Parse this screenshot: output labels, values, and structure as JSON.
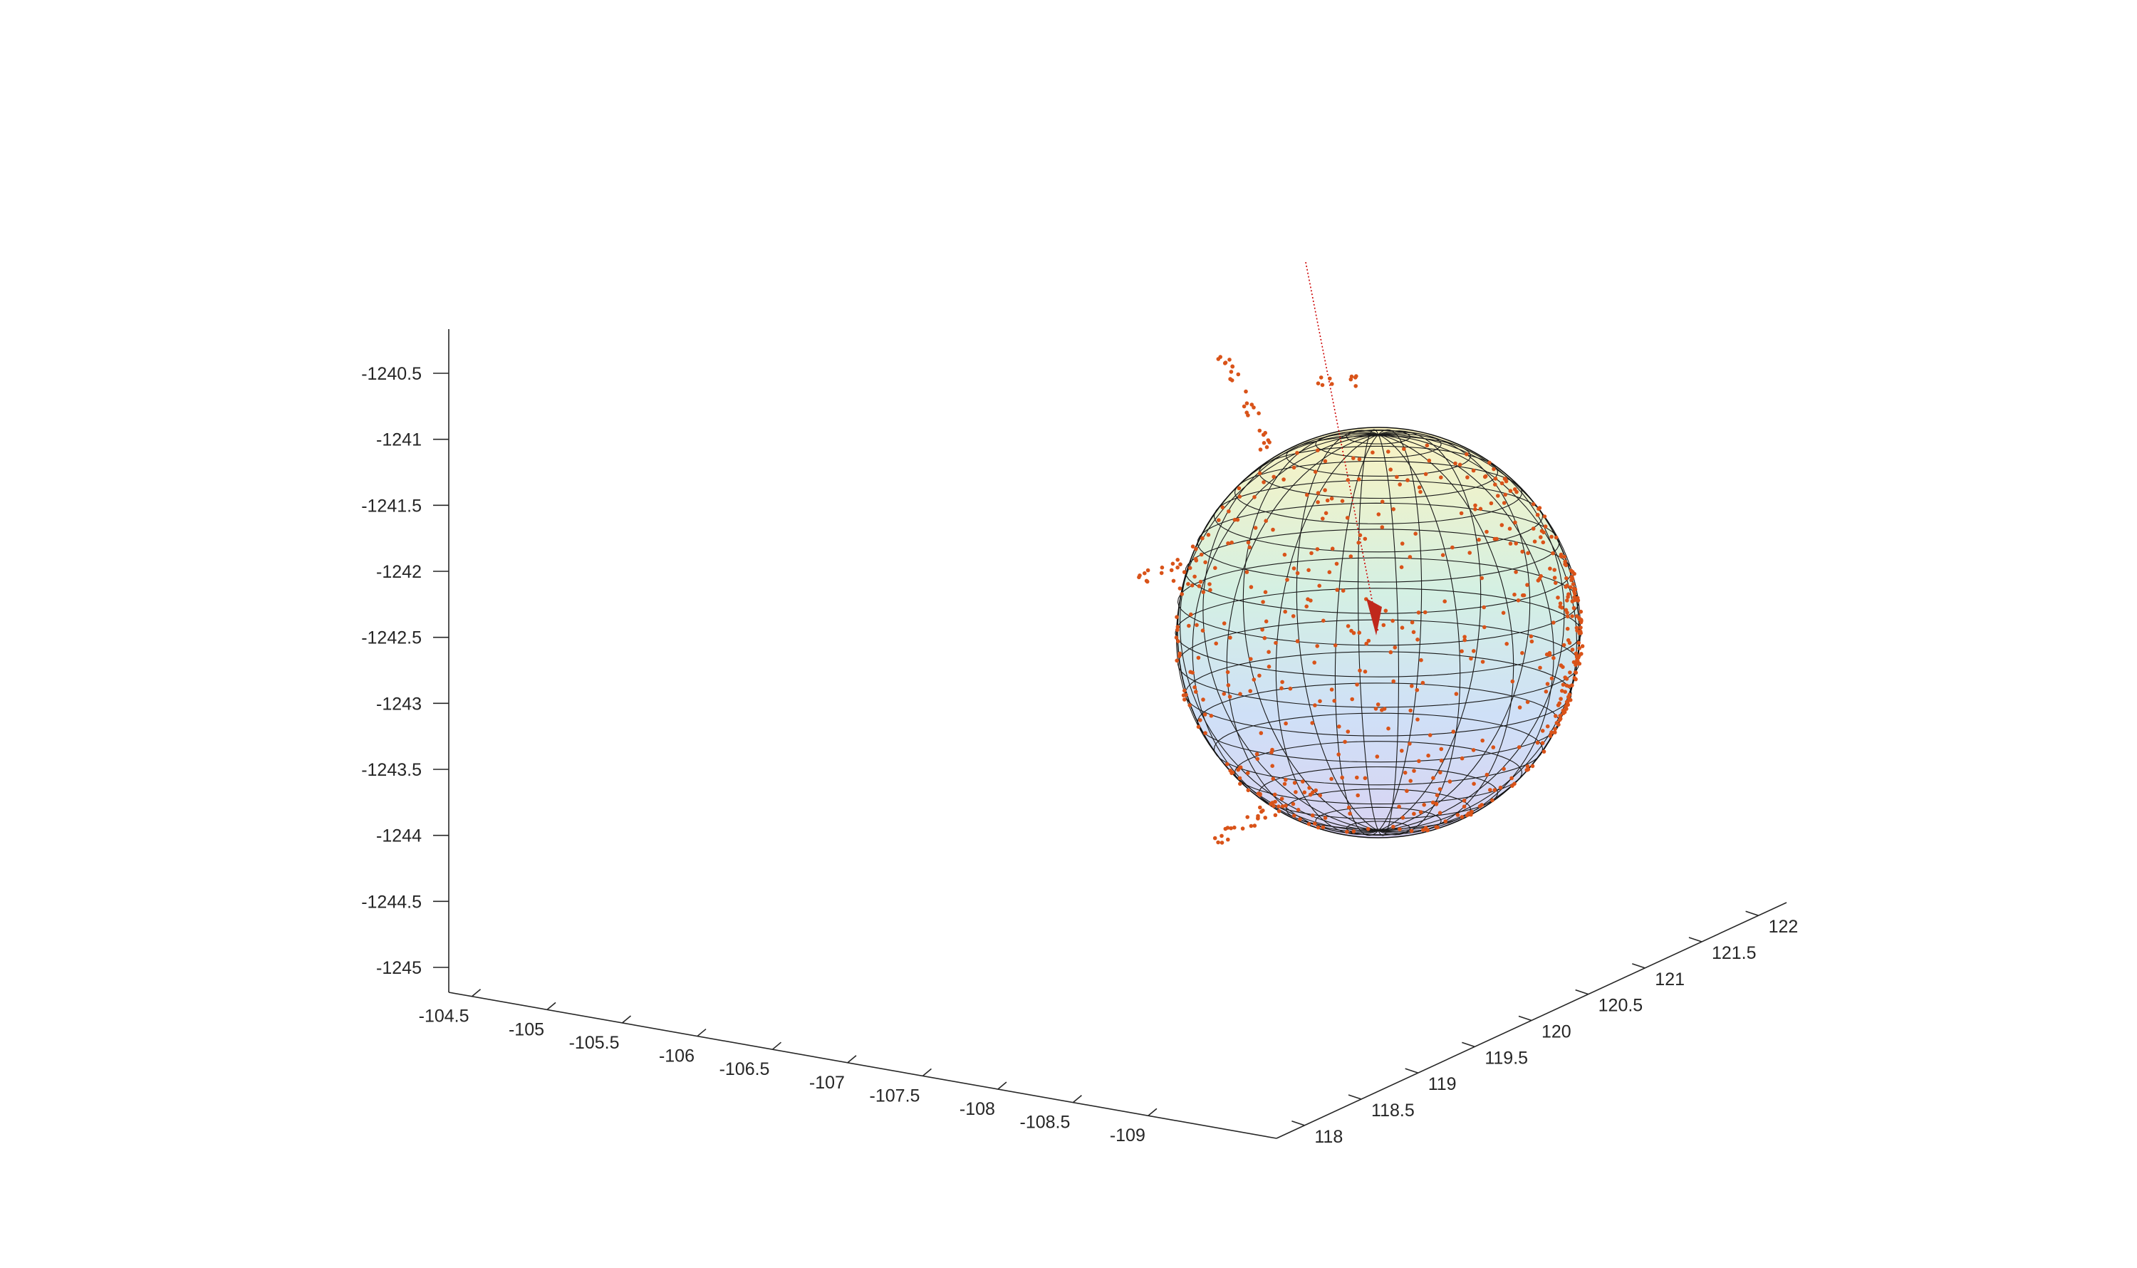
{
  "chart_data": {
    "type": "scatter",
    "title": "",
    "xlabel": "",
    "ylabel": "",
    "zlabel": "",
    "grid": false,
    "x_axis": {
      "ticks": [
        -104.5,
        -105,
        -105.5,
        -106,
        -106.5,
        -107,
        -107.5,
        -108,
        -108.5,
        -109
      ],
      "tick_labels": [
        "-104.5",
        "-105",
        "-105.5",
        "-106",
        "-106.5",
        "-107",
        "-107.5",
        "-108",
        "-108.5",
        "-109"
      ]
    },
    "y_axis": {
      "ticks": [
        118,
        118.5,
        119,
        119.5,
        120,
        120.5,
        121,
        121.5,
        122
      ],
      "tick_labels": [
        "118",
        "118.5",
        "119",
        "119.5",
        "120",
        "120.5",
        "121",
        "121.5",
        "122"
      ]
    },
    "z_axis": {
      "ticks": [
        -1240.5,
        -1241,
        -1241.5,
        -1242,
        -1242.5,
        -1243,
        -1243.5,
        -1244,
        -1244.5,
        -1245
      ],
      "tick_labels": [
        "-1240.5",
        "-1241",
        "-1241.5",
        "-1242",
        "-1242.5",
        "-1243",
        "-1243.5",
        "-1244",
        "-1244.5",
        "-1245"
      ]
    },
    "sphere": {
      "center": [
        -107.8,
        120.2,
        -1242.4
      ],
      "radius": 1.5,
      "style": "mesh",
      "colormap": [
        "#fbf3c0",
        "#d4f0e3",
        "#cfe0f7",
        "#d9d3f2"
      ],
      "edge_color": "#000000"
    },
    "points": {
      "count": 520,
      "color": "#d95319",
      "marker": "dot"
    },
    "direction_line": {
      "color": "#cc0000",
      "style": "dotted"
    },
    "arrow_marker": {
      "color": "#c0281c"
    }
  }
}
